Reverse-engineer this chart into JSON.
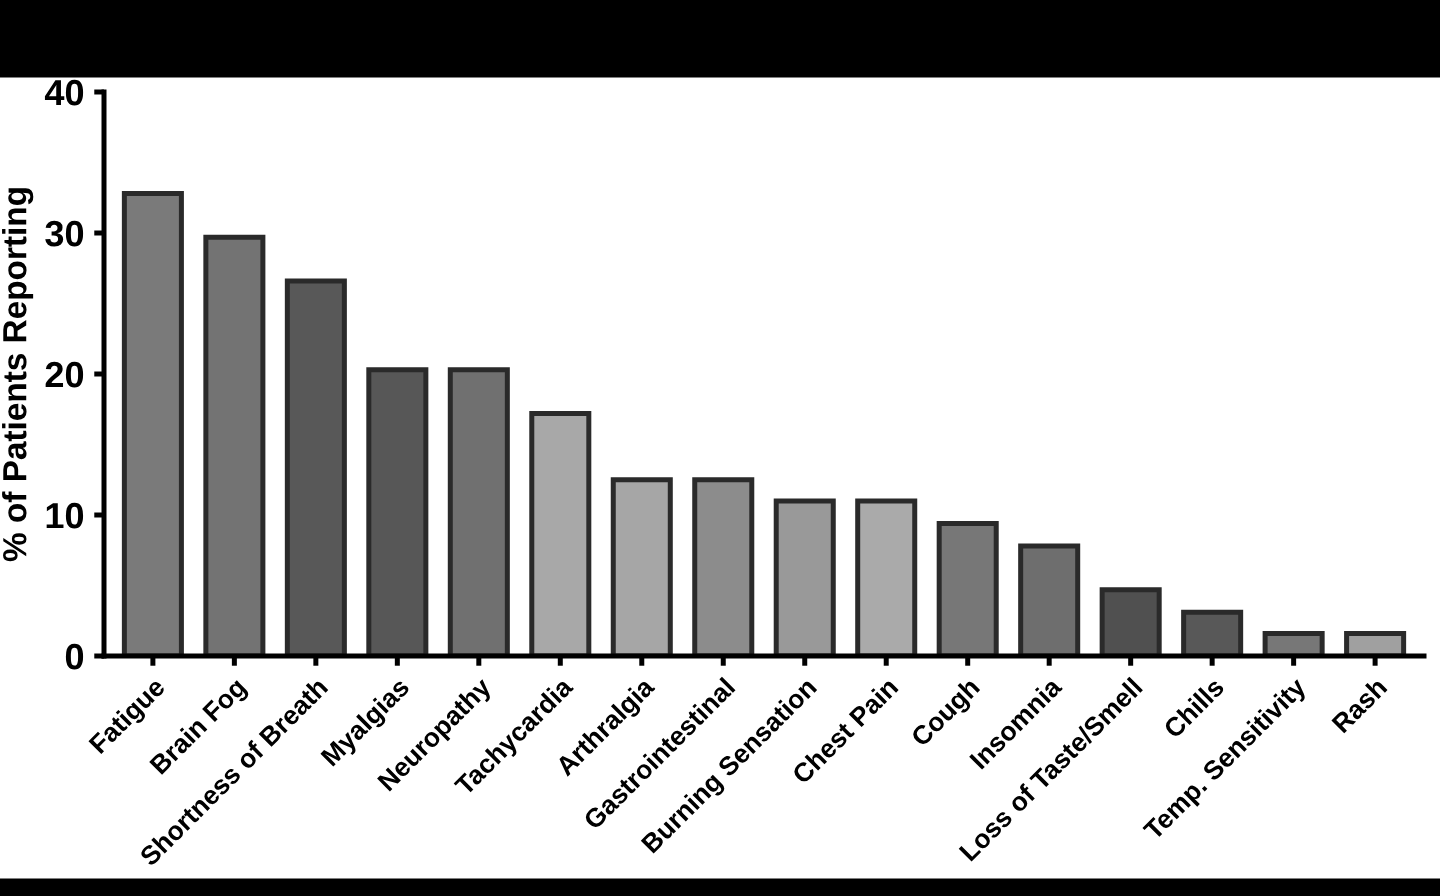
{
  "chart_data": {
    "type": "bar",
    "ylabel": "% of Patients Reporting",
    "categories": [
      "Fatigue",
      "Brain Fog",
      "Shortness of Breath",
      "Myalgias",
      "Neuropathy",
      "Tachycardia",
      "Arthralgia",
      "Gastrointestinal",
      "Burning Sensation",
      "Chest Pain",
      "Cough",
      "Insomnia",
      "Loss of Taste/Smell",
      "Chills",
      "Temp. Sensitivity",
      "Rash"
    ],
    "values": [
      32.8,
      29.7,
      26.6,
      20.3,
      20.3,
      17.2,
      12.5,
      12.5,
      11.0,
      11.0,
      9.4,
      7.8,
      4.7,
      3.1,
      1.6,
      1.6
    ],
    "colors": [
      "#7a7a7a",
      "#737373",
      "#585858",
      "#575757",
      "#707070",
      "#a8a8a8",
      "#a6a6a6",
      "#8c8c8c",
      "#999999",
      "#aaaaaa",
      "#777777",
      "#6e6e6e",
      "#505050",
      "#585858",
      "#777777",
      "#a0a0a0"
    ],
    "ylim": [
      0,
      40
    ],
    "yticks": [
      0,
      10,
      20,
      30,
      40
    ],
    "grid": false
  }
}
